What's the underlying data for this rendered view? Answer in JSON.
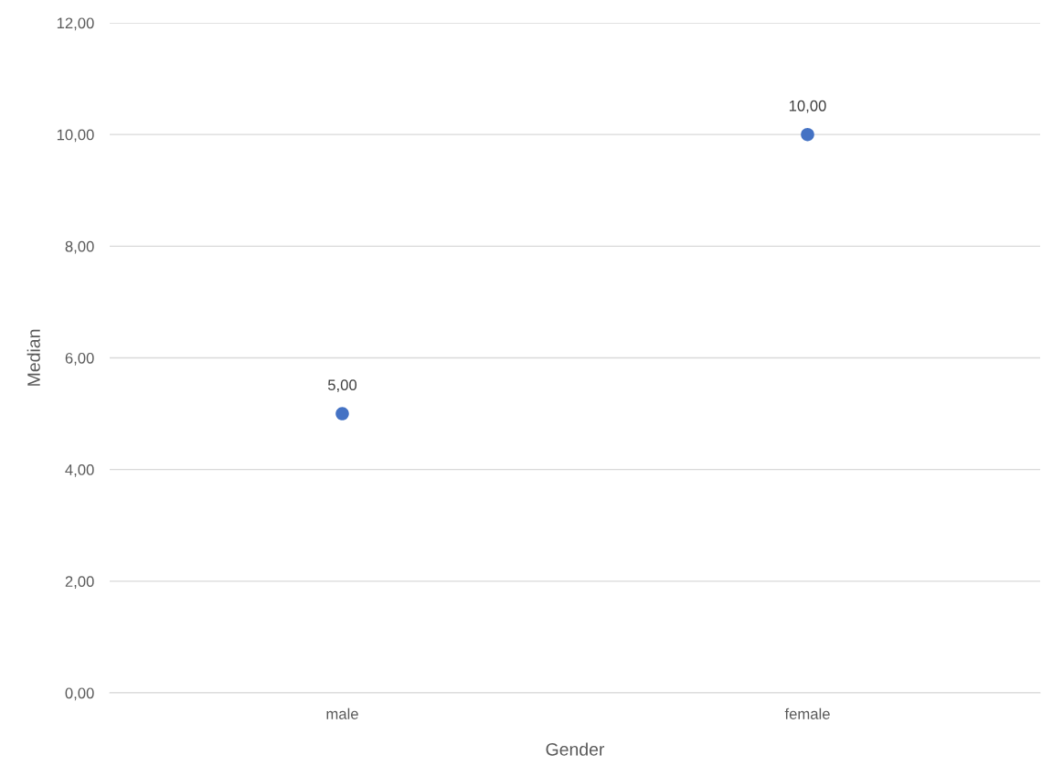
{
  "chart_data": {
    "type": "scatter",
    "xlabel": "Gender",
    "ylabel": "Median",
    "categories": [
      "male",
      "female"
    ],
    "series": [
      {
        "color": "#4472c4",
        "values": [
          5,
          10
        ],
        "value_labels": [
          "5,00",
          "10,00"
        ]
      }
    ],
    "ylim": [
      0,
      12
    ],
    "yticks": [
      {
        "value": 0,
        "label": "0,00"
      },
      {
        "value": 2,
        "label": "2,00"
      },
      {
        "value": 4,
        "label": "4,00"
      },
      {
        "value": 6,
        "label": "6,00"
      },
      {
        "value": 8,
        "label": "8,00"
      },
      {
        "value": 10,
        "label": "10,00"
      },
      {
        "value": 12,
        "label": "12,00"
      }
    ],
    "grid": "y",
    "marker": "circle",
    "legend": false
  }
}
